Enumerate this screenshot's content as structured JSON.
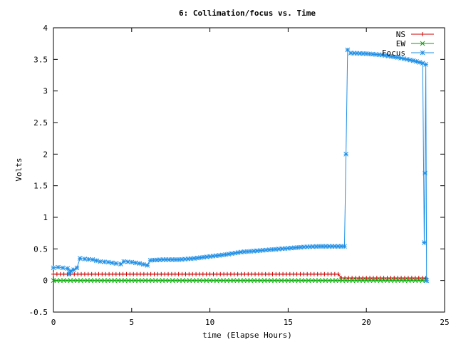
{
  "chart_data": {
    "type": "line",
    "title": "6: Collimation/focus vs. Time",
    "xlabel": "time (Elapse Hours)",
    "ylabel": "Volts",
    "xlim": [
      0,
      25
    ],
    "ylim": [
      -0.5,
      4
    ],
    "xticks": [
      "0",
      "5",
      "10",
      "15",
      "20",
      "25"
    ],
    "yticks": [
      "-0.5",
      "0",
      "0.5",
      "1",
      "1.5",
      "2",
      "2.5",
      "3",
      "3.5",
      "4"
    ],
    "grid": false,
    "legend_position": "top-right",
    "series": [
      {
        "name": "NS",
        "color": "#cc0000",
        "marker": "plus",
        "points": [
          [
            0,
            0.1
          ],
          [
            2,
            0.1
          ],
          [
            4,
            0.1
          ],
          [
            6,
            0.1
          ],
          [
            8,
            0.1
          ],
          [
            10,
            0.1
          ],
          [
            12,
            0.1
          ],
          [
            14,
            0.1
          ],
          [
            16,
            0.1
          ],
          [
            18.2,
            0.1
          ],
          [
            18.4,
            0.04
          ],
          [
            20,
            0.04
          ],
          [
            22,
            0.04
          ],
          [
            23.8,
            0.04
          ]
        ]
      },
      {
        "name": "EW",
        "color": "#00aa00",
        "marker": "x",
        "points": [
          [
            0,
            0.0
          ],
          [
            5,
            0.0
          ],
          [
            10,
            0.0
          ],
          [
            15,
            0.0
          ],
          [
            20,
            0.0
          ],
          [
            23.8,
            0.0
          ]
        ]
      },
      {
        "name": "Focus",
        "color": "#1f8fe6",
        "marker": "star",
        "points": [
          [
            0,
            0.2
          ],
          [
            0.3,
            0.21
          ],
          [
            0.6,
            0.2
          ],
          [
            0.9,
            0.19
          ],
          [
            1.0,
            0.1
          ],
          [
            1.1,
            0.15
          ],
          [
            1.3,
            0.17
          ],
          [
            1.5,
            0.2
          ],
          [
            1.7,
            0.35
          ],
          [
            2.0,
            0.34
          ],
          [
            2.5,
            0.33
          ],
          [
            3.0,
            0.3
          ],
          [
            3.5,
            0.29
          ],
          [
            4.0,
            0.27
          ],
          [
            4.3,
            0.26
          ],
          [
            4.5,
            0.3
          ],
          [
            5.0,
            0.29
          ],
          [
            5.5,
            0.27
          ],
          [
            6.0,
            0.24
          ],
          [
            6.2,
            0.32
          ],
          [
            7,
            0.33
          ],
          [
            8,
            0.33
          ],
          [
            9,
            0.35
          ],
          [
            10,
            0.38
          ],
          [
            11,
            0.41
          ],
          [
            12,
            0.45
          ],
          [
            13,
            0.47
          ],
          [
            14,
            0.49
          ],
          [
            15,
            0.51
          ],
          [
            16,
            0.53
          ],
          [
            17,
            0.54
          ],
          [
            18,
            0.54
          ],
          [
            18.6,
            0.54
          ],
          [
            18.7,
            2.0
          ],
          [
            18.8,
            3.65
          ],
          [
            19,
            3.6
          ],
          [
            20,
            3.59
          ],
          [
            21,
            3.57
          ],
          [
            22,
            3.53
          ],
          [
            23,
            3.48
          ],
          [
            23.6,
            3.44
          ],
          [
            23.7,
            0.6
          ],
          [
            23.75,
            1.7
          ],
          [
            23.8,
            3.42
          ],
          [
            23.85,
            0.0
          ]
        ]
      }
    ]
  }
}
